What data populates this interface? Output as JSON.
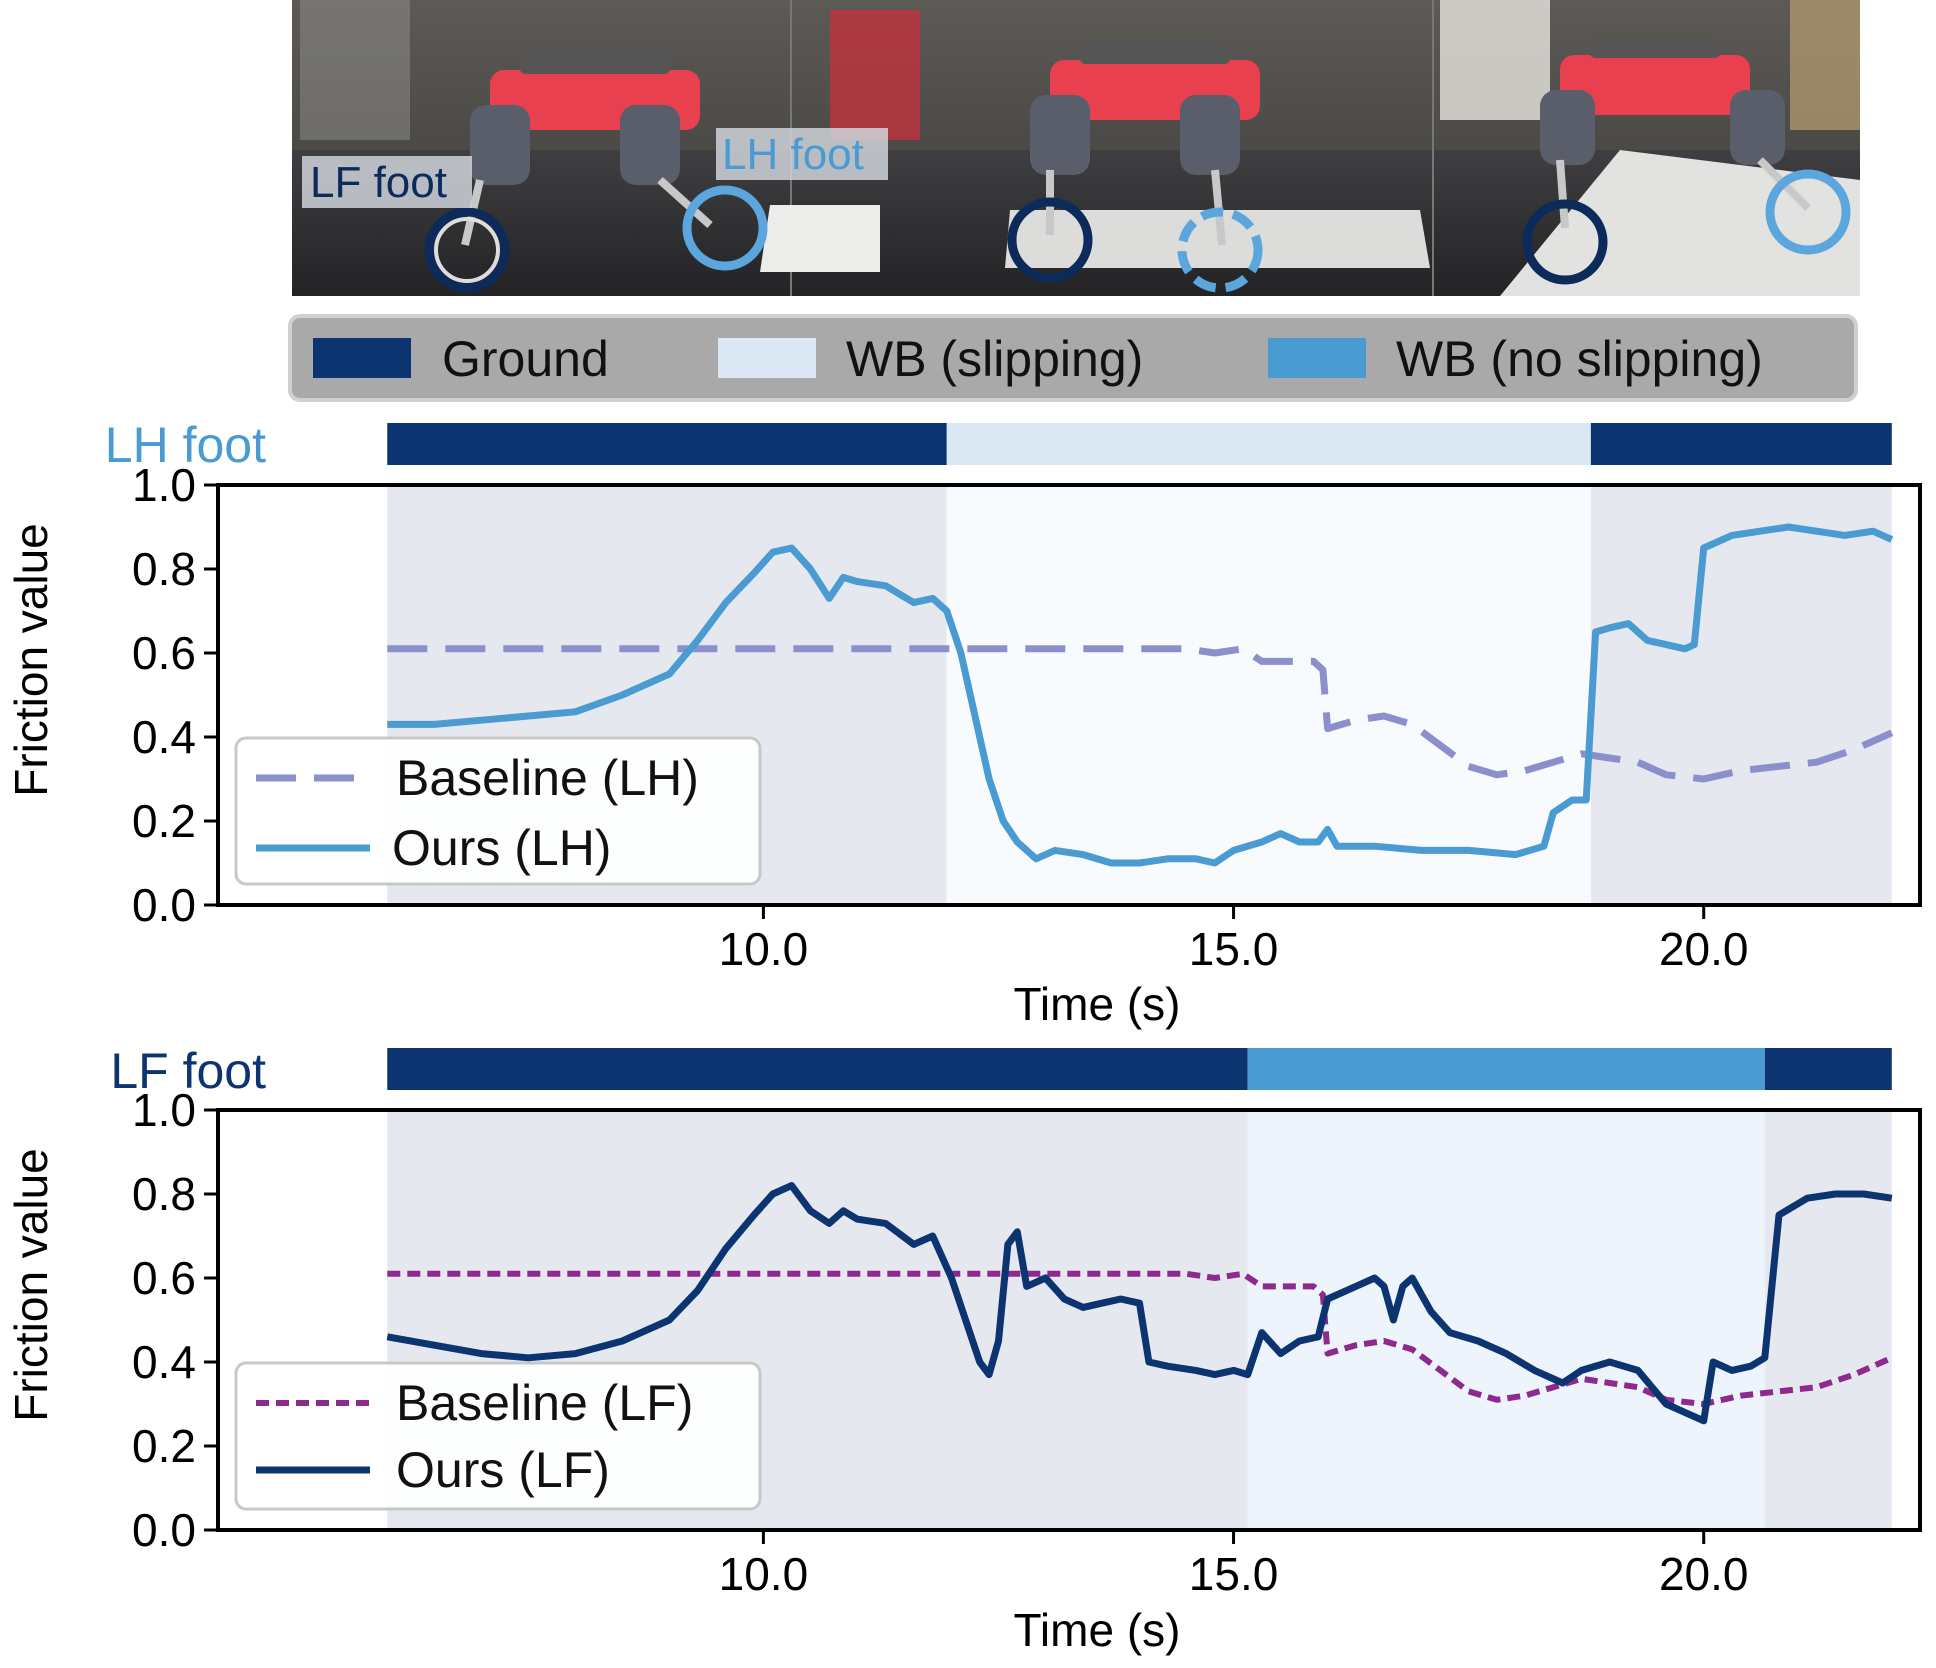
{
  "photo": {
    "alt": "Legged robot walking over a slippery whiteboard",
    "labels": {
      "lf": "LF foot",
      "lh": "LH foot"
    }
  },
  "legend": {
    "items": [
      {
        "label": "Ground",
        "color": "#0c3470"
      },
      {
        "label": "WB (slipping)",
        "color": "#dbe8f4"
      },
      {
        "label": "WB (no slipping)",
        "color": "#4a9bd2"
      }
    ]
  },
  "chart_data": [
    {
      "type": "line",
      "foot_label": "LH foot",
      "foot_label_color": "#4a9bd2",
      "xlabel": "Time (s)",
      "ylabel": "Friction value",
      "xlim": [
        4.2,
        22.3
      ],
      "ylim": [
        0.0,
        1.0
      ],
      "xticks": [
        "10.0",
        "15.0",
        "20.0"
      ],
      "yticks": [
        "0.0",
        "0.2",
        "0.4",
        "0.6",
        "0.8",
        "1.0"
      ],
      "legend_position": "lower-left",
      "contact_phases": [
        {
          "state": "Ground",
          "start": 6.0,
          "end": 11.95,
          "color": "#0c3470",
          "shade": "#e6e8f0"
        },
        {
          "state": "WB (slipping)",
          "start": 11.95,
          "end": 18.8,
          "color": "#dbe8f4",
          "shade": "#f8fbfe"
        },
        {
          "state": "Ground",
          "start": 18.8,
          "end": 22.0,
          "color": "#0c3470",
          "shade": "#e6e8f0"
        }
      ],
      "series": [
        {
          "name": "Baseline (LH)",
          "style": "dashed",
          "color": "#8b8fcb",
          "points": [
            [
              6.0,
              0.61
            ],
            [
              8.0,
              0.61
            ],
            [
              10.0,
              0.61
            ],
            [
              12.0,
              0.61
            ],
            [
              14.5,
              0.61
            ],
            [
              14.8,
              0.6
            ],
            [
              15.1,
              0.61
            ],
            [
              15.3,
              0.58
            ],
            [
              15.6,
              0.58
            ],
            [
              15.85,
              0.58
            ],
            [
              15.95,
              0.56
            ],
            [
              16.0,
              0.42
            ],
            [
              16.3,
              0.44
            ],
            [
              16.6,
              0.45
            ],
            [
              16.9,
              0.43
            ],
            [
              17.2,
              0.38
            ],
            [
              17.5,
              0.33
            ],
            [
              17.8,
              0.31
            ],
            [
              18.1,
              0.32
            ],
            [
              18.4,
              0.34
            ],
            [
              18.7,
              0.36
            ],
            [
              19.0,
              0.35
            ],
            [
              19.3,
              0.34
            ],
            [
              19.6,
              0.31
            ],
            [
              20.0,
              0.3
            ],
            [
              20.4,
              0.32
            ],
            [
              20.8,
              0.33
            ],
            [
              21.2,
              0.34
            ],
            [
              21.6,
              0.37
            ],
            [
              22.0,
              0.41
            ]
          ]
        },
        {
          "name": "Ours (LH)",
          "style": "solid",
          "color": "#4a9bd2",
          "points": [
            [
              6.0,
              0.43
            ],
            [
              6.5,
              0.43
            ],
            [
              7.0,
              0.44
            ],
            [
              7.5,
              0.45
            ],
            [
              8.0,
              0.46
            ],
            [
              8.5,
              0.5
            ],
            [
              9.0,
              0.55
            ],
            [
              9.3,
              0.63
            ],
            [
              9.6,
              0.72
            ],
            [
              9.9,
              0.79
            ],
            [
              10.1,
              0.84
            ],
            [
              10.3,
              0.85
            ],
            [
              10.5,
              0.8
            ],
            [
              10.7,
              0.73
            ],
            [
              10.85,
              0.78
            ],
            [
              11.0,
              0.77
            ],
            [
              11.3,
              0.76
            ],
            [
              11.6,
              0.72
            ],
            [
              11.8,
              0.73
            ],
            [
              11.95,
              0.7
            ],
            [
              12.1,
              0.6
            ],
            [
              12.25,
              0.45
            ],
            [
              12.4,
              0.3
            ],
            [
              12.55,
              0.2
            ],
            [
              12.7,
              0.15
            ],
            [
              12.9,
              0.11
            ],
            [
              13.1,
              0.13
            ],
            [
              13.4,
              0.12
            ],
            [
              13.7,
              0.1
            ],
            [
              14.0,
              0.1
            ],
            [
              14.3,
              0.11
            ],
            [
              14.6,
              0.11
            ],
            [
              14.8,
              0.1
            ],
            [
              15.0,
              0.13
            ],
            [
              15.3,
              0.15
            ],
            [
              15.5,
              0.17
            ],
            [
              15.7,
              0.15
            ],
            [
              15.9,
              0.15
            ],
            [
              16.0,
              0.18
            ],
            [
              16.1,
              0.14
            ],
            [
              16.5,
              0.14
            ],
            [
              17.0,
              0.13
            ],
            [
              17.5,
              0.13
            ],
            [
              18.0,
              0.12
            ],
            [
              18.3,
              0.14
            ],
            [
              18.4,
              0.22
            ],
            [
              18.6,
              0.25
            ],
            [
              18.75,
              0.25
            ],
            [
              18.85,
              0.65
            ],
            [
              19.0,
              0.66
            ],
            [
              19.2,
              0.67
            ],
            [
              19.4,
              0.63
            ],
            [
              19.6,
              0.62
            ],
            [
              19.8,
              0.61
            ],
            [
              19.9,
              0.62
            ],
            [
              20.0,
              0.85
            ],
            [
              20.3,
              0.88
            ],
            [
              20.6,
              0.89
            ],
            [
              20.9,
              0.9
            ],
            [
              21.2,
              0.89
            ],
            [
              21.5,
              0.88
            ],
            [
              21.8,
              0.89
            ],
            [
              22.0,
              0.87
            ]
          ]
        }
      ]
    },
    {
      "type": "line",
      "foot_label": "LF foot",
      "foot_label_color": "#0c3470",
      "xlabel": "Time (s)",
      "ylabel": "Friction value",
      "xlim": [
        4.2,
        22.3
      ],
      "ylim": [
        0.0,
        1.0
      ],
      "xticks": [
        "10.0",
        "15.0",
        "20.0"
      ],
      "yticks": [
        "0.0",
        "0.2",
        "0.4",
        "0.6",
        "0.8",
        "1.0"
      ],
      "legend_position": "lower-left",
      "contact_phases": [
        {
          "state": "Ground",
          "start": 6.0,
          "end": 15.15,
          "color": "#0c3470",
          "shade": "#e6e8f0"
        },
        {
          "state": "WB (no slipping)",
          "start": 15.15,
          "end": 20.65,
          "color": "#4a9bd2",
          "shade": "#edf4fb"
        },
        {
          "state": "Ground",
          "start": 20.65,
          "end": 22.0,
          "color": "#0c3470",
          "shade": "#e6e8f0"
        }
      ],
      "series": [
        {
          "name": "Baseline (LF)",
          "style": "dotted",
          "color": "#8e2a8e",
          "points": [
            [
              6.0,
              0.61
            ],
            [
              8.0,
              0.61
            ],
            [
              10.0,
              0.61
            ],
            [
              12.0,
              0.61
            ],
            [
              14.5,
              0.61
            ],
            [
              14.8,
              0.6
            ],
            [
              15.1,
              0.61
            ],
            [
              15.3,
              0.58
            ],
            [
              15.6,
              0.58
            ],
            [
              15.85,
              0.58
            ],
            [
              15.95,
              0.56
            ],
            [
              16.0,
              0.42
            ],
            [
              16.3,
              0.44
            ],
            [
              16.6,
              0.45
            ],
            [
              16.9,
              0.43
            ],
            [
              17.2,
              0.38
            ],
            [
              17.5,
              0.33
            ],
            [
              17.8,
              0.31
            ],
            [
              18.1,
              0.32
            ],
            [
              18.4,
              0.34
            ],
            [
              18.7,
              0.36
            ],
            [
              19.0,
              0.35
            ],
            [
              19.3,
              0.34
            ],
            [
              19.6,
              0.31
            ],
            [
              20.0,
              0.3
            ],
            [
              20.4,
              0.32
            ],
            [
              20.8,
              0.33
            ],
            [
              21.2,
              0.34
            ],
            [
              21.6,
              0.37
            ],
            [
              22.0,
              0.41
            ]
          ]
        },
        {
          "name": "Ours (LF)",
          "style": "solid",
          "color": "#0c3470",
          "points": [
            [
              6.0,
              0.46
            ],
            [
              6.5,
              0.44
            ],
            [
              7.0,
              0.42
            ],
            [
              7.5,
              0.41
            ],
            [
              8.0,
              0.42
            ],
            [
              8.5,
              0.45
            ],
            [
              9.0,
              0.5
            ],
            [
              9.3,
              0.57
            ],
            [
              9.6,
              0.67
            ],
            [
              9.9,
              0.75
            ],
            [
              10.1,
              0.8
            ],
            [
              10.3,
              0.82
            ],
            [
              10.5,
              0.76
            ],
            [
              10.7,
              0.73
            ],
            [
              10.85,
              0.76
            ],
            [
              11.0,
              0.74
            ],
            [
              11.3,
              0.73
            ],
            [
              11.6,
              0.68
            ],
            [
              11.8,
              0.7
            ],
            [
              12.0,
              0.6
            ],
            [
              12.15,
              0.5
            ],
            [
              12.3,
              0.4
            ],
            [
              12.4,
              0.37
            ],
            [
              12.5,
              0.45
            ],
            [
              12.6,
              0.68
            ],
            [
              12.7,
              0.71
            ],
            [
              12.8,
              0.58
            ],
            [
              12.9,
              0.59
            ],
            [
              13.0,
              0.6
            ],
            [
              13.2,
              0.55
            ],
            [
              13.4,
              0.53
            ],
            [
              13.6,
              0.54
            ],
            [
              13.8,
              0.55
            ],
            [
              14.0,
              0.54
            ],
            [
              14.1,
              0.4
            ],
            [
              14.3,
              0.39
            ],
            [
              14.6,
              0.38
            ],
            [
              14.8,
              0.37
            ],
            [
              15.0,
              0.38
            ],
            [
              15.15,
              0.37
            ],
            [
              15.3,
              0.47
            ],
            [
              15.5,
              0.42
            ],
            [
              15.7,
              0.45
            ],
            [
              15.9,
              0.46
            ],
            [
              16.0,
              0.55
            ],
            [
              16.3,
              0.58
            ],
            [
              16.5,
              0.6
            ],
            [
              16.6,
              0.58
            ],
            [
              16.7,
              0.5
            ],
            [
              16.8,
              0.58
            ],
            [
              16.9,
              0.6
            ],
            [
              17.1,
              0.52
            ],
            [
              17.3,
              0.47
            ],
            [
              17.6,
              0.45
            ],
            [
              17.9,
              0.42
            ],
            [
              18.2,
              0.38
            ],
            [
              18.5,
              0.35
            ],
            [
              18.7,
              0.38
            ],
            [
              19.0,
              0.4
            ],
            [
              19.3,
              0.38
            ],
            [
              19.6,
              0.3
            ],
            [
              19.8,
              0.28
            ],
            [
              20.0,
              0.26
            ],
            [
              20.1,
              0.4
            ],
            [
              20.3,
              0.38
            ],
            [
              20.5,
              0.39
            ],
            [
              20.65,
              0.41
            ],
            [
              20.8,
              0.75
            ],
            [
              21.1,
              0.79
            ],
            [
              21.4,
              0.8
            ],
            [
              21.7,
              0.8
            ],
            [
              22.0,
              0.79
            ]
          ]
        }
      ]
    }
  ]
}
